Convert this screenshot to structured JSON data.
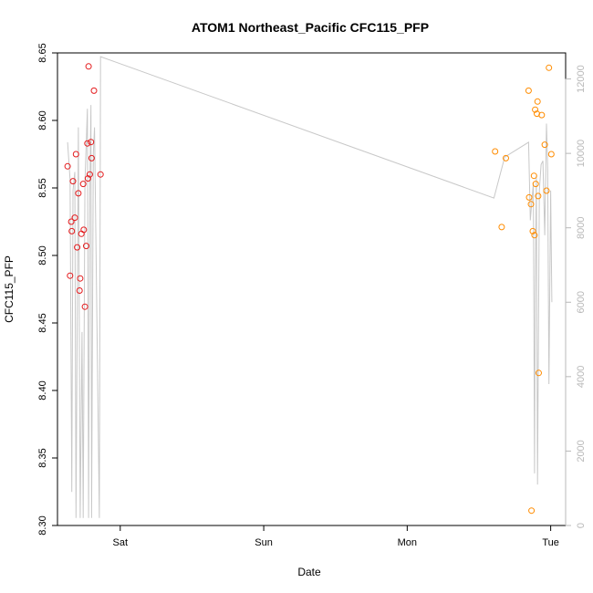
{
  "chart_data": {
    "type": "scatter",
    "title": "ATOM1 Northeast_Pacific CFC115_PFP",
    "xlabel": "Date",
    "ylabel": "CFC115_PFP",
    "x_ticks": [
      "Sat",
      "Sun",
      "Mon",
      "Tue"
    ],
    "x_tick_positions_hours": [
      0,
      24,
      48,
      72
    ],
    "xlim_hours": [
      -10.5,
      74.5
    ],
    "ylim": [
      8.3,
      8.65
    ],
    "y_ticks": [
      8.3,
      8.35,
      8.4,
      8.45,
      8.5,
      8.55,
      8.6,
      8.65
    ],
    "y_tick_labels": [
      "8.30",
      "8.35",
      "8.40",
      "8.45",
      "8.50",
      "8.55",
      "8.60",
      "8.65"
    ],
    "y2lim": [
      0,
      12700
    ],
    "y2_ticks": [
      0,
      2000,
      4000,
      6000,
      8000,
      10000,
      12000
    ],
    "y2_tick_labels": [
      "0",
      "2000",
      "4000",
      "6000",
      "8000",
      "10000",
      "12000"
    ],
    "colors": {
      "series_1": "#e41a1c",
      "series_2": "#ff8c00",
      "altitude_line": "#c8c8c8",
      "axis": "#000000",
      "right_axis": "#b8b8b8"
    },
    "series": [
      {
        "color": "#e41a1c",
        "points": [
          {
            "x": -8.8,
            "y": 8.566
          },
          {
            "x": -8.4,
            "y": 8.485
          },
          {
            "x": -8.2,
            "y": 8.525
          },
          {
            "x": -8.1,
            "y": 8.518
          },
          {
            "x": -7.9,
            "y": 8.555
          },
          {
            "x": -7.6,
            "y": 8.528
          },
          {
            "x": -7.4,
            "y": 8.575
          },
          {
            "x": -7.2,
            "y": 8.506
          },
          {
            "x": -7.0,
            "y": 8.546
          },
          {
            "x": -6.8,
            "y": 8.474
          },
          {
            "x": -6.7,
            "y": 8.483
          },
          {
            "x": -6.5,
            "y": 8.516
          },
          {
            "x": -6.2,
            "y": 8.553
          },
          {
            "x": -6.1,
            "y": 8.519
          },
          {
            "x": -5.9,
            "y": 8.462
          },
          {
            "x": -5.7,
            "y": 8.507
          },
          {
            "x": -5.5,
            "y": 8.583
          },
          {
            "x": -5.4,
            "y": 8.557
          },
          {
            "x": -5.3,
            "y": 8.64
          },
          {
            "x": -5.1,
            "y": 8.56
          },
          {
            "x": -4.9,
            "y": 8.584
          },
          {
            "x": -4.8,
            "y": 8.572
          },
          {
            "x": -4.4,
            "y": 8.622
          },
          {
            "x": -3.3,
            "y": 8.56
          }
        ]
      },
      {
        "color": "#ff8c00",
        "points": [
          {
            "x": 62.7,
            "y": 8.577
          },
          {
            "x": 63.8,
            "y": 8.521
          },
          {
            "x": 64.5,
            "y": 8.572
          },
          {
            "x": 68.3,
            "y": 8.622
          },
          {
            "x": 68.4,
            "y": 8.543
          },
          {
            "x": 68.7,
            "y": 8.538
          },
          {
            "x": 68.8,
            "y": 8.311
          },
          {
            "x": 69.0,
            "y": 8.518
          },
          {
            "x": 69.2,
            "y": 8.559
          },
          {
            "x": 69.3,
            "y": 8.515
          },
          {
            "x": 69.4,
            "y": 8.608
          },
          {
            "x": 69.5,
            "y": 8.553
          },
          {
            "x": 69.7,
            "y": 8.605
          },
          {
            "x": 69.8,
            "y": 8.614
          },
          {
            "x": 69.9,
            "y": 8.544
          },
          {
            "x": 70.0,
            "y": 8.413
          },
          {
            "x": 70.5,
            "y": 8.604
          },
          {
            "x": 71.0,
            "y": 8.582
          },
          {
            "x": 71.3,
            "y": 8.548
          },
          {
            "x": 71.7,
            "y": 8.639
          },
          {
            "x": 72.1,
            "y": 8.575
          }
        ]
      }
    ],
    "altitude_line": [
      {
        "x": -8.8,
        "y2": 10300
      },
      {
        "x": -8.4,
        "y2": 9300
      },
      {
        "x": -8.1,
        "y2": 900
      },
      {
        "x": -7.9,
        "y2": 9000
      },
      {
        "x": -7.6,
        "y2": 9500
      },
      {
        "x": -7.4,
        "y2": 200
      },
      {
        "x": -7.0,
        "y2": 10700
      },
      {
        "x": -6.7,
        "y2": 200
      },
      {
        "x": -6.4,
        "y2": 5200
      },
      {
        "x": -6.2,
        "y2": 200
      },
      {
        "x": -5.9,
        "y2": 9200
      },
      {
        "x": -5.5,
        "y2": 11200
      },
      {
        "x": -5.3,
        "y2": 200
      },
      {
        "x": -5.1,
        "y2": 9000
      },
      {
        "x": -4.9,
        "y2": 11300
      },
      {
        "x": -4.8,
        "y2": 200
      },
      {
        "x": -4.5,
        "y2": 10000
      },
      {
        "x": -4.3,
        "y2": 10700
      },
      {
        "x": -3.5,
        "y2": 200
      },
      {
        "x": -3.3,
        "y2": 12600
      },
      {
        "x": 62.5,
        "y2": 8800
      },
      {
        "x": 64.3,
        "y2": 9900
      },
      {
        "x": 68.3,
        "y2": 10300
      },
      {
        "x": 68.6,
        "y2": 8200
      },
      {
        "x": 69.1,
        "y2": 9200
      },
      {
        "x": 69.3,
        "y2": 1400
      },
      {
        "x": 69.4,
        "y2": 6100
      },
      {
        "x": 69.6,
        "y2": 9400
      },
      {
        "x": 69.8,
        "y2": 1100
      },
      {
        "x": 70.1,
        "y2": 9000
      },
      {
        "x": 70.4,
        "y2": 9700
      },
      {
        "x": 70.7,
        "y2": 9800
      },
      {
        "x": 71.0,
        "y2": 7800
      },
      {
        "x": 71.3,
        "y2": 10800
      },
      {
        "x": 71.5,
        "y2": 9600
      },
      {
        "x": 71.7,
        "y2": 3800
      },
      {
        "x": 72.0,
        "y2": 9000
      },
      {
        "x": 72.2,
        "y2": 6000
      }
    ]
  }
}
